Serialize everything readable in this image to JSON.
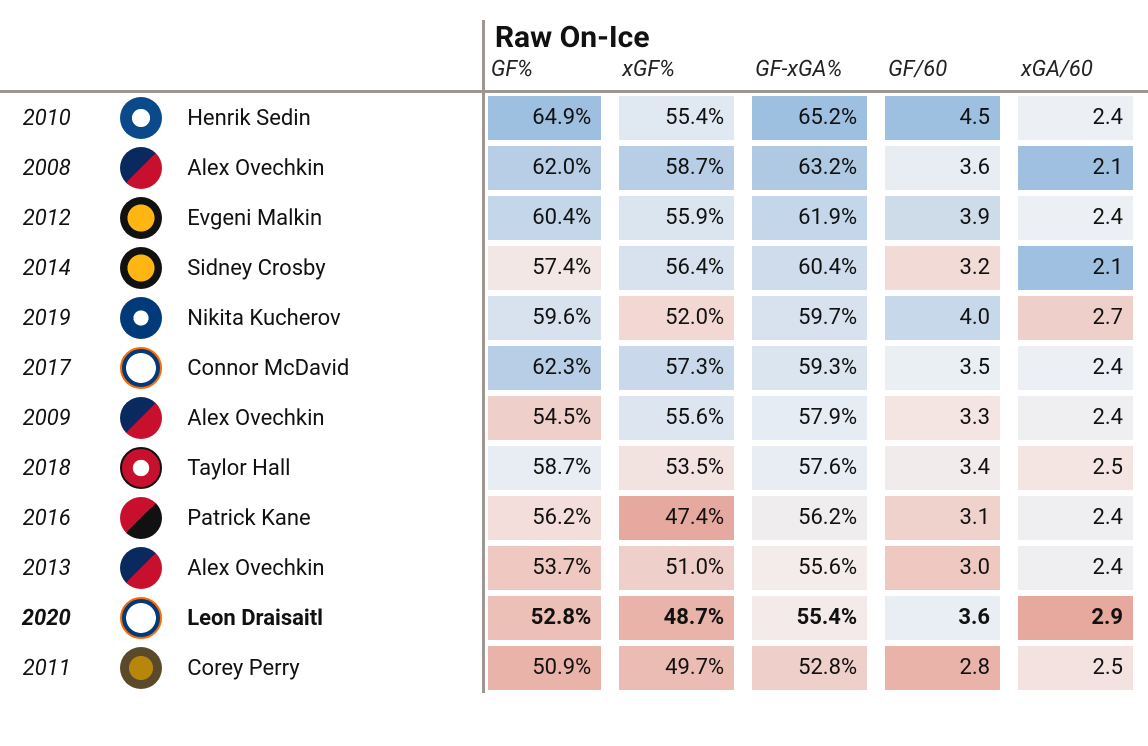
{
  "section_title": "Raw On-Ice",
  "columns": [
    "GF%",
    "xGF%",
    "GF-xGA%",
    "GF/60",
    "xGA/60"
  ],
  "highlight_row_index": 10,
  "rows": [
    {
      "year": "2010",
      "team": "van",
      "name": "Henrik Sedin",
      "cells": [
        {
          "v": "64.9%",
          "bg": "#9dbfe0"
        },
        {
          "v": "55.4%",
          "bg": "#e0e9f2"
        },
        {
          "v": "65.2%",
          "bg": "#9dbfe0"
        },
        {
          "v": "4.5",
          "bg": "#9dbfe0"
        },
        {
          "v": "2.4",
          "bg": "#eceff3"
        }
      ]
    },
    {
      "year": "2008",
      "team": "wsh",
      "name": "Alex Ovechkin",
      "cells": [
        {
          "v": "62.0%",
          "bg": "#b7cee6"
        },
        {
          "v": "58.7%",
          "bg": "#b7cee6"
        },
        {
          "v": "63.2%",
          "bg": "#afc9e3"
        },
        {
          "v": "3.6",
          "bg": "#e7edf3"
        },
        {
          "v": "2.1",
          "bg": "#9fc0e0"
        }
      ]
    },
    {
      "year": "2012",
      "team": "pit",
      "name": "Evgeni Malkin",
      "cells": [
        {
          "v": "60.4%",
          "bg": "#c3d6ea"
        },
        {
          "v": "55.9%",
          "bg": "#dbe5f0"
        },
        {
          "v": "61.9%",
          "bg": "#c3d6ea"
        },
        {
          "v": "3.9",
          "bg": "#cedce9"
        },
        {
          "v": "2.4",
          "bg": "#eceff3"
        }
      ]
    },
    {
      "year": "2014",
      "team": "pit",
      "name": "Sidney Crosby",
      "cells": [
        {
          "v": "57.4%",
          "bg": "#f3e7e6"
        },
        {
          "v": "56.4%",
          "bg": "#d7e2ee"
        },
        {
          "v": "60.4%",
          "bg": "#cedceb"
        },
        {
          "v": "3.2",
          "bg": "#f2dad6"
        },
        {
          "v": "2.1",
          "bg": "#9fc0e0"
        }
      ]
    },
    {
      "year": "2019",
      "team": "tbl",
      "name": "Nikita Kucherov",
      "cells": [
        {
          "v": "59.6%",
          "bg": "#d7e2ee"
        },
        {
          "v": "52.0%",
          "bg": "#f2d7d3"
        },
        {
          "v": "59.7%",
          "bg": "#d7e2ee"
        },
        {
          "v": "4.0",
          "bg": "#c7d8ea"
        },
        {
          "v": "2.7",
          "bg": "#efcfca"
        }
      ]
    },
    {
      "year": "2017",
      "team": "edm",
      "name": "Connor McDavid",
      "cells": [
        {
          "v": "62.3%",
          "bg": "#b7cee6"
        },
        {
          "v": "57.3%",
          "bg": "#c9d9eb"
        },
        {
          "v": "59.3%",
          "bg": "#dbe5f0"
        },
        {
          "v": "3.5",
          "bg": "#eaeff4"
        },
        {
          "v": "2.4",
          "bg": "#eceff3"
        }
      ]
    },
    {
      "year": "2009",
      "team": "wsh",
      "name": "Alex Ovechkin",
      "cells": [
        {
          "v": "54.5%",
          "bg": "#efcfc9"
        },
        {
          "v": "55.6%",
          "bg": "#dde6f0"
        },
        {
          "v": "57.9%",
          "bg": "#e5ecf3"
        },
        {
          "v": "3.3",
          "bg": "#f4e5e2"
        },
        {
          "v": "2.4",
          "bg": "#efeef0"
        }
      ]
    },
    {
      "year": "2018",
      "team": "njd",
      "name": "Taylor Hall",
      "cells": [
        {
          "v": "58.7%",
          "bg": "#e7edf3"
        },
        {
          "v": "53.5%",
          "bg": "#f3e3e0"
        },
        {
          "v": "57.6%",
          "bg": "#e7edf3"
        },
        {
          "v": "3.4",
          "bg": "#f1eceb"
        },
        {
          "v": "2.5",
          "bg": "#f4e5e2"
        }
      ]
    },
    {
      "year": "2016",
      "team": "chi",
      "name": "Patrick Kane",
      "cells": [
        {
          "v": "56.2%",
          "bg": "#f3dedb"
        },
        {
          "v": "47.4%",
          "bg": "#e6a99f"
        },
        {
          "v": "56.2%",
          "bg": "#f0edee"
        },
        {
          "v": "3.1",
          "bg": "#f0d2cd"
        },
        {
          "v": "2.4",
          "bg": "#efeef0"
        }
      ]
    },
    {
      "year": "2013",
      "team": "wsh",
      "name": "Alex Ovechkin",
      "cells": [
        {
          "v": "53.7%",
          "bg": "#eec8c1"
        },
        {
          "v": "51.0%",
          "bg": "#efcfc9"
        },
        {
          "v": "55.6%",
          "bg": "#f3eceb"
        },
        {
          "v": "3.0",
          "bg": "#eec8c1"
        },
        {
          "v": "2.4",
          "bg": "#efeef0"
        }
      ]
    },
    {
      "year": "2020",
      "team": "edm",
      "name": "Leon Draisaitl",
      "cells": [
        {
          "v": "52.8%",
          "bg": "#ecbfb7"
        },
        {
          "v": "48.7%",
          "bg": "#e9b3a9"
        },
        {
          "v": "55.4%",
          "bg": "#f3eae9"
        },
        {
          "v": "3.6",
          "bg": "#e9eef4"
        },
        {
          "v": "2.9",
          "bg": "#e7a89d"
        }
      ]
    },
    {
      "year": "2011",
      "team": "ana",
      "name": "Corey Perry",
      "cells": [
        {
          "v": "50.9%",
          "bg": "#e9b3a9"
        },
        {
          "v": "49.7%",
          "bg": "#ebbcb3"
        },
        {
          "v": "52.8%",
          "bg": "#efcfc9"
        },
        {
          "v": "2.8",
          "bg": "#e9b3a9"
        },
        {
          "v": "2.5",
          "bg": "#f3e2df"
        }
      ]
    }
  ]
}
